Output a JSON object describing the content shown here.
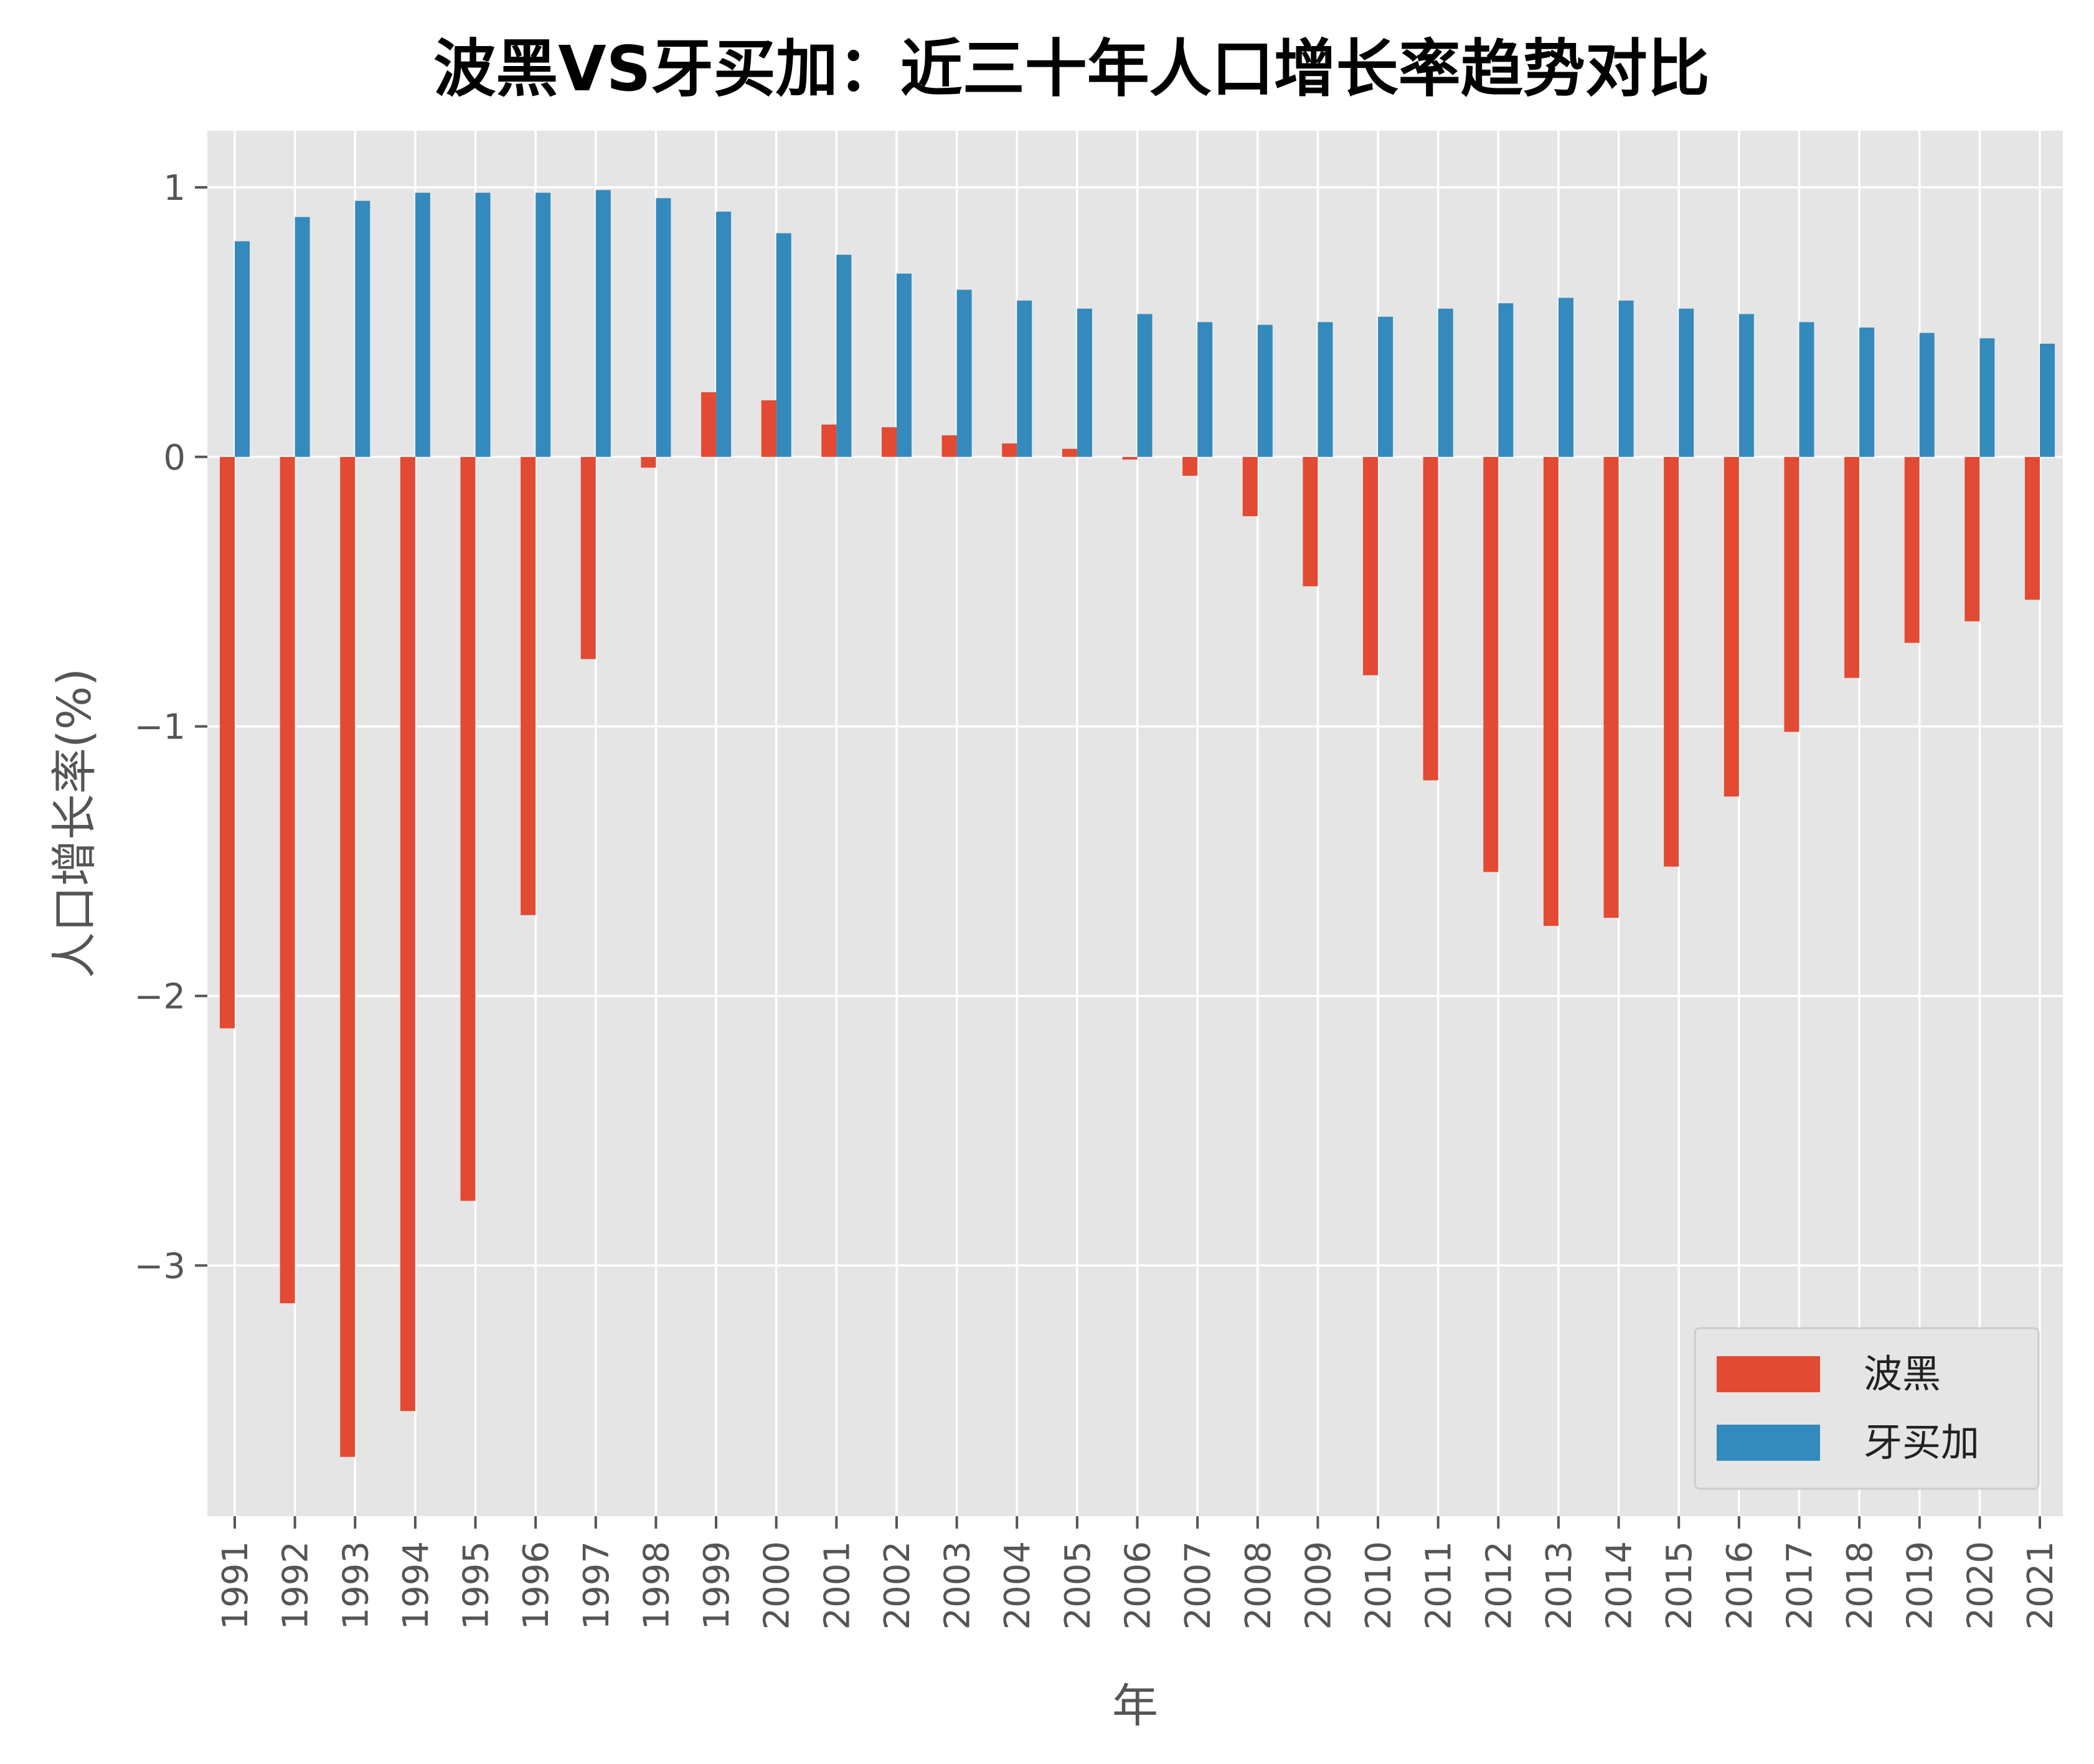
{
  "chart_data": {
    "type": "bar",
    "title": "波黑VS牙买加：近三十年人口增长率趋势对比",
    "xlabel": "年",
    "ylabel": "人口增长率(%)",
    "categories": [
      "1991",
      "1992",
      "1993",
      "1994",
      "1995",
      "1996",
      "1997",
      "1998",
      "1999",
      "2000",
      "2001",
      "2002",
      "2003",
      "2004",
      "2005",
      "2006",
      "2007",
      "2008",
      "2009",
      "2010",
      "2011",
      "2012",
      "2013",
      "2014",
      "2015",
      "2016",
      "2017",
      "2018",
      "2019",
      "2020",
      "2021"
    ],
    "series": [
      {
        "name": "波黑",
        "color": "#E24A33",
        "values": [
          -2.12,
          -3.14,
          -3.71,
          -3.54,
          -2.76,
          -1.7,
          -0.75,
          -0.04,
          0.24,
          0.21,
          0.12,
          0.11,
          0.08,
          0.05,
          0.03,
          -0.01,
          -0.07,
          -0.22,
          -0.48,
          -0.81,
          -1.2,
          -1.54,
          -1.74,
          -1.71,
          -1.52,
          -1.26,
          -1.02,
          -0.82,
          -0.69,
          -0.61,
          -0.53
        ]
      },
      {
        "name": "牙买加",
        "color": "#348ABD",
        "values": [
          0.8,
          0.89,
          0.95,
          0.98,
          0.98,
          0.98,
          0.99,
          0.96,
          0.91,
          0.83,
          0.75,
          0.68,
          0.62,
          0.58,
          0.55,
          0.53,
          0.5,
          0.49,
          0.5,
          0.52,
          0.55,
          0.57,
          0.59,
          0.58,
          0.55,
          0.53,
          0.5,
          0.48,
          0.46,
          0.44,
          0.42
        ]
      }
    ],
    "yticks": [
      1,
      0,
      -1,
      -2,
      -3
    ],
    "ytick_labels": [
      "1",
      "0",
      "−1",
      "−2",
      "−3"
    ],
    "ylim": [
      -3.93,
      1.21
    ],
    "grid": true,
    "legend_position": "lower-right",
    "colors": {
      "background": "#E5E5E5",
      "grid": "#FFFFFF"
    }
  }
}
